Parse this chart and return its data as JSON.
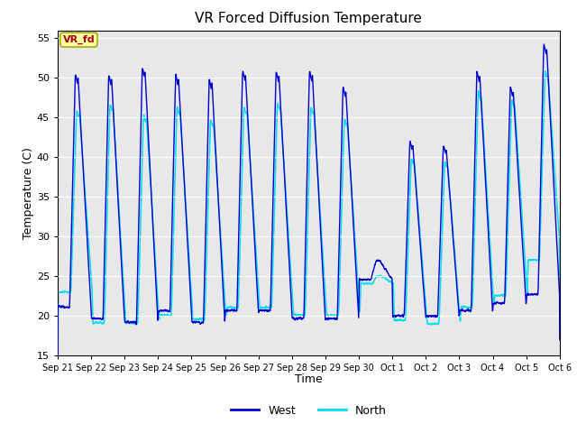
{
  "title": "VR Forced Diffusion Temperature",
  "xlabel": "Time",
  "ylabel": "Temperature (C)",
  "ylim": [
    15,
    56
  ],
  "yticks": [
    15,
    20,
    25,
    30,
    35,
    40,
    45,
    50,
    55
  ],
  "legend_label_west": "West",
  "legend_label_north": "North",
  "west_color": "#0000CC",
  "north_color": "#00DDEE",
  "bg_color": "#E8E8E8",
  "annotation_text": "VR_fd",
  "annotation_bg": "#FFFFAA",
  "annotation_border": "#AAAA00",
  "annotation_text_color": "#AA0000",
  "x_tick_labels": [
    "Sep 21",
    "Sep 22",
    "Sep 23",
    "Sep 24",
    "Sep 25",
    "Sep 26",
    "Sep 27",
    "Sep 28",
    "Sep 29",
    "Sep 30",
    "Oct 1",
    "Oct 2",
    "Oct 3",
    "Oct 4",
    "Oct 5",
    "Oct 6"
  ],
  "num_days": 15
}
